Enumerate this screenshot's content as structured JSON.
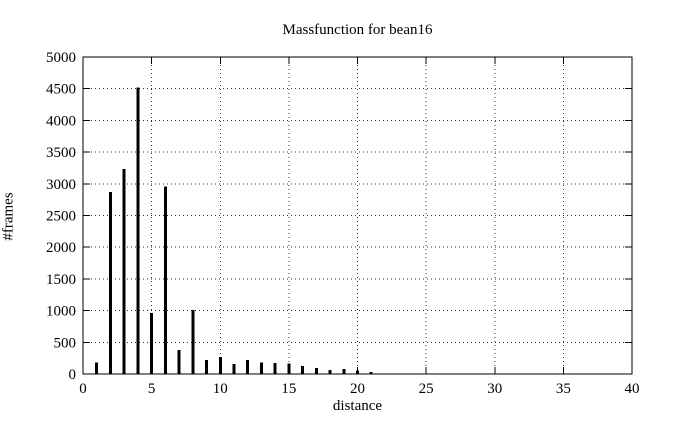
{
  "chart_data": {
    "type": "bar",
    "subtype": "impulses (thin vertical lines, gnuplot style)",
    "title": "Massfunction for bean16",
    "xlabel": "distance",
    "ylabel": "#frames",
    "xlim": [
      0,
      40
    ],
    "ylim": [
      0,
      5000
    ],
    "x_ticks": [
      0,
      5,
      10,
      15,
      20,
      25,
      30,
      35,
      40
    ],
    "y_ticks": [
      0,
      500,
      1000,
      1500,
      2000,
      2500,
      3000,
      3500,
      4000,
      4500,
      5000
    ],
    "grid": "dotted grid at every major tick, both axes",
    "legend": "none",
    "x": [
      1,
      2,
      3,
      4,
      5,
      6,
      7,
      8,
      9,
      10,
      11,
      12,
      13,
      14,
      15,
      16,
      17,
      18,
      19,
      20,
      21
    ],
    "values": [
      180,
      2870,
      3230,
      4520,
      960,
      2960,
      380,
      1010,
      220,
      265,
      160,
      220,
      180,
      175,
      165,
      125,
      95,
      65,
      80,
      55,
      35
    ],
    "bar_color": "#000000",
    "axis_color": "#000000",
    "grid_color": "#333333",
    "background": "#ffffff"
  }
}
